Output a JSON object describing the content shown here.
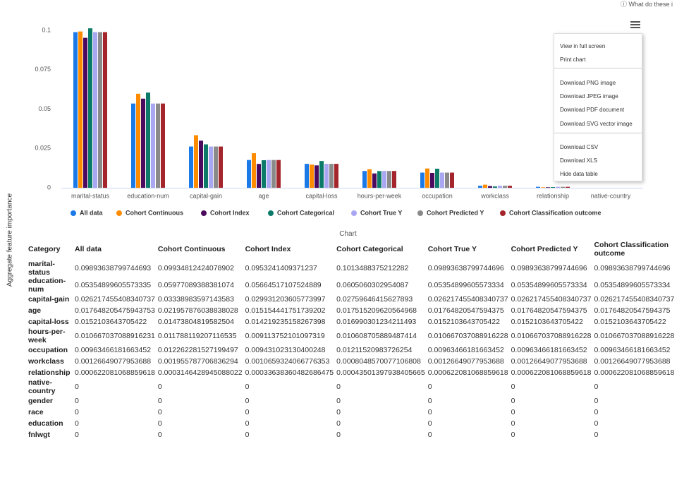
{
  "top_link": "What do these i",
  "chart_data": {
    "type": "bar",
    "y_axis_label": "Aggregate feature importance",
    "categories": [
      "marital-status",
      "education-num",
      "capital-gain",
      "age",
      "capital-loss",
      "hours-per-week",
      "occupation",
      "workclass",
      "relationship",
      "native-country",
      "gender",
      "race",
      "education",
      "fnlwgt"
    ],
    "series": [
      {
        "name": "All data",
        "color": "#1b7ae8",
        "values": [
          0.09893638799744693,
          0.05354899605573335,
          0.026217455408340737,
          0.017648205475943753,
          0.0152103643705422,
          0.010667037088916231,
          0.00963466181663452,
          0.00126649077953688,
          0.000622081068859618,
          0,
          0,
          0,
          0,
          0
        ]
      },
      {
        "name": "Cohort Continuous",
        "color": "#ff8c00",
        "values": [
          0.09934812424078902,
          0.05977089388381074,
          0.03338983597143583,
          0.021957876038838028,
          0.01473804819582504,
          0.011788119207116535,
          0.012262281527199497,
          0.001955787706836294,
          0.0003146428945088022,
          0,
          0,
          0,
          0,
          0
        ]
      },
      {
        "name": "Cohort Index",
        "color": "#4b0a5e",
        "values": [
          0.0953241409371237,
          0.05664517107524889,
          0.029931203605773997,
          0.015154441751739202,
          0.014219235158267398,
          0.009113752101097319,
          0.009431023130400248,
          0.0010659324066776353,
          0.00033638360482686475,
          0,
          0,
          0,
          0,
          0
        ]
      },
      {
        "name": "Cohort Categorical",
        "color": "#0b7a68",
        "values": [
          0.1013488375212282,
          0.0605060302954087,
          0.02759646415627893,
          0.017515209620564968,
          0.016990301234211493,
          0.010608705889487414,
          0.01211520983726254,
          0.0008048570077106808,
          0.00043501397938405665,
          0,
          0,
          0,
          0,
          0
        ]
      },
      {
        "name": "Cohort True Y",
        "color": "#a9a6f2",
        "values": [
          0.09893638799744696,
          0.05354899605573334,
          0.026217455408340737,
          0.01764820547594375,
          0.0152103643705422,
          0.010667037088916228,
          0.00963466181663452,
          0.00126649077953688,
          0.000622081068859618,
          0,
          0,
          0,
          0,
          0
        ]
      },
      {
        "name": "Cohort Predicted Y",
        "color": "#8a8a8a",
        "values": [
          0.09893638799744696,
          0.05354899605573334,
          0.026217455408340737,
          0.01764820547594375,
          0.0152103643705422,
          0.010667037088916228,
          0.00963466181663452,
          0.00126649077953688,
          0.000622081068859618,
          0,
          0,
          0,
          0,
          0
        ]
      },
      {
        "name": "Cohort Classification outcome",
        "color": "#a4262c",
        "values": [
          0.09893638799744696,
          0.05354899605573334,
          0.026217455408340737,
          0.01764820547594375,
          0.0152103643705422,
          0.010667037088916228,
          0.00963466181663452,
          0.00126649077953688,
          0.000622081068859618,
          0,
          0,
          0,
          0,
          0
        ]
      }
    ],
    "ylim": [
      0,
      0.105
    ],
    "yticks": [
      0,
      0.025,
      0.05,
      0.075,
      0.1
    ],
    "grid": false,
    "legend": "bottom"
  },
  "table": {
    "caption": "Chart",
    "first_header": "Category"
  },
  "menu": {
    "items": [
      "View in full screen",
      "Print chart",
      "Download PNG image",
      "Download JPEG image",
      "Download PDF document",
      "Download SVG vector image",
      "Download CSV",
      "Download XLS",
      "Hide data table"
    ]
  }
}
